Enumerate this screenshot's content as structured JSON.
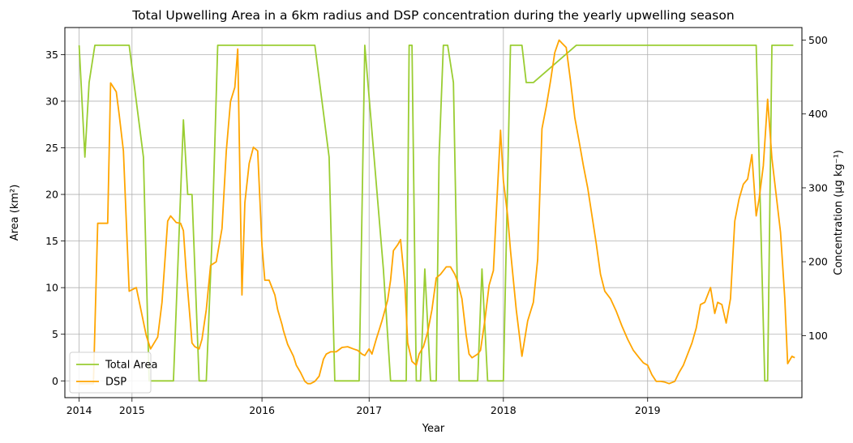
{
  "chart_data": {
    "type": "line",
    "title": "Total Upwelling Area in a 6km radius and DSP concentration during the yearly upwelling season",
    "xlabel": "Year",
    "ylabel": "Area (km²)",
    "y2label": "Concentration (µg kg⁻¹)",
    "x_ticks": [
      {
        "label": "2014",
        "x": 2014.0
      },
      {
        "label": "2015",
        "x": 2014.37
      },
      {
        "label": "2016",
        "x": 2015.28
      },
      {
        "label": "2017",
        "x": 2016.03
      },
      {
        "label": "2018",
        "x": 2016.97
      },
      {
        "label": "2019",
        "x": 2017.98
      }
    ],
    "xlim": [
      2013.9,
      2019.06
    ],
    "ylim": [
      -1.8,
      37.9
    ],
    "y2lim": [
      16,
      517
    ],
    "y_ticks": [
      0,
      5,
      10,
      15,
      20,
      25,
      30,
      35
    ],
    "y2_ticks": [
      100,
      200,
      300,
      400,
      500
    ],
    "grid": true,
    "legend": {
      "placement": "lower-left"
    },
    "series": [
      {
        "name": "Total Area",
        "color": "#9acd32",
        "axis": "left",
        "x": [
          2014.0,
          2014.04,
          2014.07,
          2014.11,
          2014.14,
          2014.2,
          2014.35,
          2014.45,
          2014.49,
          2014.55,
          2014.66,
          2014.69,
          2014.73,
          2014.76,
          2014.79,
          2014.84,
          2014.89,
          2014.93,
          2014.97,
          2015.07,
          2015.28,
          2015.38,
          2015.42,
          2015.44,
          2015.65,
          2015.75,
          2015.79,
          2015.82,
          2015.86,
          2015.89,
          2015.92,
          2015.96,
          2016.0,
          2016.13,
          2016.18,
          2016.22,
          2016.24,
          2016.29,
          2016.31,
          2016.33,
          2016.36,
          2016.39,
          2016.42,
          2016.46,
          2016.5,
          2016.52,
          2016.55,
          2016.58,
          2016.62,
          2016.66,
          2016.7,
          2016.75,
          2016.79,
          2016.82,
          2016.86,
          2016.97,
          2017.02,
          2017.07,
          2017.1,
          2017.13,
          2017.18,
          2017.48,
          2017.51,
          2017.54,
          2017.57,
          2017.68,
          2017.98,
          2018.04,
          2018.14,
          2018.3,
          2018.48,
          2018.54,
          2018.56,
          2018.7,
          2018.74,
          2018.8,
          2018.82,
          2018.85,
          2018.98,
          2019.0
        ],
        "values": [
          36,
          24,
          32,
          36,
          36,
          36,
          36,
          24,
          0,
          0,
          0,
          12,
          28,
          20,
          20,
          0,
          0,
          15,
          36,
          36,
          36,
          36,
          36,
          36,
          36,
          24,
          0,
          0,
          0,
          0,
          0,
          0,
          36,
          12,
          0,
          0,
          0,
          0,
          36,
          36,
          0,
          0,
          12,
          0,
          0,
          24,
          36,
          36,
          32,
          0,
          0,
          0,
          0,
          12,
          0,
          0,
          36,
          36,
          36,
          32,
          32,
          36,
          36,
          36,
          36,
          36,
          36,
          36,
          36,
          36,
          36,
          36,
          36,
          36,
          36,
          0,
          0,
          36,
          36,
          36
        ]
      },
      {
        "name": "DSP",
        "color": "#ffa500",
        "axis": "right",
        "x": [
          2014.0,
          2014.06,
          2014.1,
          2014.13,
          2014.17,
          2014.2,
          2014.22,
          2014.26,
          2014.28,
          2014.31,
          2014.35,
          2014.4,
          2014.47,
          2014.5,
          2014.55,
          2014.58,
          2014.62,
          2014.64,
          2014.68,
          2014.71,
          2014.73,
          2014.75,
          2014.78,
          2014.79,
          2014.81,
          2014.84,
          2014.86,
          2014.89,
          2014.92,
          2014.96,
          2015.0,
          2015.03,
          2015.06,
          2015.09,
          2015.11,
          2015.14,
          2015.16,
          2015.19,
          2015.22,
          2015.25,
          2015.28,
          2015.3,
          2015.33,
          2015.37,
          2015.39,
          2015.42,
          2015.43,
          2015.46,
          2015.5,
          2015.52,
          2015.55,
          2015.58,
          2015.6,
          2015.62,
          2015.65,
          2015.68,
          2015.7,
          2015.71,
          2015.73,
          2015.76,
          2015.8,
          2015.84,
          2015.88,
          2015.92,
          2015.95,
          2015.98,
          2016.0,
          2016.03,
          2016.05,
          2016.08,
          2016.12,
          2016.16,
          2016.18,
          2016.2,
          2016.23,
          2016.25,
          2016.28,
          2016.3,
          2016.33,
          2016.36,
          2016.38,
          2016.41,
          2016.44,
          2016.47,
          2016.5,
          2016.53,
          2016.57,
          2016.6,
          2016.63,
          2016.65,
          2016.68,
          2016.71,
          2016.73,
          2016.75,
          2016.79,
          2016.81,
          2016.84,
          2016.87,
          2016.9,
          2016.92,
          2016.95,
          2016.97,
          2017.0,
          2017.02,
          2017.06,
          2017.1,
          2017.14,
          2017.18,
          2017.21,
          2017.24,
          2017.27,
          2017.3,
          2017.33,
          2017.36,
          2017.38,
          2017.41,
          2017.44,
          2017.47,
          2017.5,
          2017.53,
          2017.56,
          2017.59,
          2017.62,
          2017.65,
          2017.68,
          2017.72,
          2017.76,
          2017.8,
          2017.84,
          2017.88,
          2017.92,
          2017.95,
          2017.98,
          2018.01,
          2018.04,
          2018.07,
          2018.1,
          2018.13,
          2018.17,
          2018.2,
          2018.23,
          2018.26,
          2018.29,
          2018.32,
          2018.35,
          2018.38,
          2018.42,
          2018.45,
          2018.47,
          2018.5,
          2018.53,
          2018.56,
          2018.59,
          2018.62,
          2018.65,
          2018.68,
          2018.71,
          2018.74,
          2018.76,
          2018.79,
          2018.82,
          2018.85,
          2018.88,
          2018.91,
          2018.94,
          2018.96,
          2018.99,
          2019.01
        ],
        "values": [
          35,
          35,
          35,
          252,
          252,
          252,
          442,
          430,
          400,
          350,
          160,
          165,
          100,
          82,
          98,
          145,
          255,
          262,
          253,
          252,
          242,
          185,
          115,
          90,
          85,
          82,
          95,
          135,
          195,
          200,
          245,
          350,
          417,
          436,
          488,
          155,
          280,
          333,
          355,
          350,
          222,
          175,
          175,
          155,
          135,
          115,
          107,
          88,
          72,
          60,
          50,
          38,
          35,
          35,
          38,
          45,
          60,
          68,
          75,
          78,
          78,
          84,
          85,
          82,
          80,
          75,
          73,
          82,
          75,
          95,
          120,
          148,
          175,
          215,
          223,
          230,
          170,
          90,
          65,
          60,
          75,
          85,
          105,
          135,
          178,
          183,
          193,
          193,
          183,
          173,
          150,
          100,
          75,
          70,
          75,
          80,
          120,
          168,
          188,
          265,
          378,
          310,
          262,
          215,
          135,
          72,
          120,
          145,
          203,
          380,
          410,
          445,
          483,
          500,
          496,
          490,
          445,
          395,
          363,
          330,
          300,
          263,
          225,
          183,
          160,
          150,
          133,
          113,
          95,
          80,
          70,
          63,
          60,
          47,
          38,
          38,
          37,
          35,
          38,
          50,
          60,
          75,
          90,
          110,
          142,
          145,
          165,
          130,
          145,
          142,
          117,
          150,
          255,
          285,
          305,
          312,
          345,
          262,
          285,
          330,
          420,
          340,
          290,
          240,
          150,
          62,
          72,
          70
        ]
      }
    ]
  }
}
